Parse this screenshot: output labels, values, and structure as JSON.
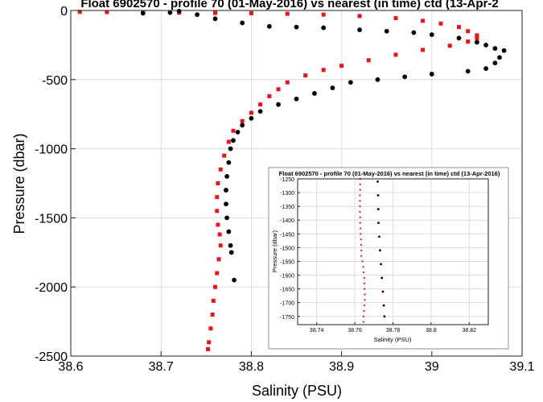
{
  "chart_data": [
    {
      "type": "scatter",
      "title": "Float 6902570 - profile 70 (01-May-2016) vs nearest (in time) ctd (13-Apr-2",
      "xlabel": "Salinity (PSU)",
      "ylabel": "Pressure (dbar)",
      "xlim": [
        38.6,
        39.1
      ],
      "ylim": [
        -2500,
        0
      ],
      "xticks": [
        "38.6",
        "38.7",
        "38.8",
        "38.9",
        "39",
        "39.1"
      ],
      "yticks": [
        "0",
        "-500",
        "-1000",
        "-1500",
        "-2000",
        "-2500"
      ],
      "grid": true,
      "series": [
        {
          "color": "#e8141b",
          "marker": "square",
          "points": [
            [
              38.61,
              -10
            ],
            [
              38.64,
              -12
            ],
            [
              38.68,
              -14
            ],
            [
              38.72,
              -16
            ],
            [
              38.76,
              -18
            ],
            [
              38.8,
              -20
            ],
            [
              38.84,
              -24
            ],
            [
              38.88,
              -30
            ],
            [
              38.92,
              -40
            ],
            [
              38.96,
              -55
            ],
            [
              38.99,
              -75
            ],
            [
              39.01,
              -95
            ],
            [
              39.03,
              -120
            ],
            [
              39.04,
              -150
            ],
            [
              39.05,
              -180
            ],
            [
              39.05,
              -200
            ],
            [
              39.04,
              -225
            ],
            [
              39.02,
              -255
            ],
            [
              38.99,
              -285
            ],
            [
              38.96,
              -320
            ],
            [
              38.93,
              -360
            ],
            [
              38.9,
              -400
            ],
            [
              38.88,
              -430
            ],
            [
              38.86,
              -470
            ],
            [
              38.84,
              -520
            ],
            [
              38.83,
              -570
            ],
            [
              38.82,
              -620
            ],
            [
              38.81,
              -680
            ],
            [
              38.8,
              -740
            ],
            [
              38.79,
              -800
            ],
            [
              38.78,
              -870
            ],
            [
              38.775,
              -950
            ],
            [
              38.77,
              -1050
            ],
            [
              38.766,
              -1150
            ],
            [
              38.763,
              -1250
            ],
            [
              38.762,
              -1350
            ],
            [
              38.762,
              -1450
            ],
            [
              38.763,
              -1550
            ],
            [
              38.765,
              -1620
            ],
            [
              38.766,
              -1700
            ],
            [
              38.764,
              -1800
            ],
            [
              38.762,
              -1900
            ],
            [
              38.76,
              -2000
            ],
            [
              38.758,
              -2100
            ],
            [
              38.757,
              -2200
            ],
            [
              38.755,
              -2300
            ],
            [
              38.753,
              -2400
            ],
            [
              38.752,
              -2450
            ]
          ]
        },
        {
          "color": "#000000",
          "marker": "circle",
          "points": [
            [
              38.68,
              -20
            ],
            [
              38.71,
              -15
            ],
            [
              38.72,
              -5
            ],
            [
              38.74,
              -30
            ],
            [
              38.76,
              -60
            ],
            [
              38.79,
              -90
            ],
            [
              38.82,
              -115
            ],
            [
              38.85,
              -120
            ],
            [
              38.88,
              -125
            ],
            [
              38.92,
              -140
            ],
            [
              38.95,
              -150
            ],
            [
              38.98,
              -160
            ],
            [
              39.0,
              -175
            ],
            [
              39.03,
              -200
            ],
            [
              39.05,
              -230
            ],
            [
              39.06,
              -250
            ],
            [
              39.07,
              -275
            ],
            [
              39.08,
              -290
            ],
            [
              39.075,
              -340
            ],
            [
              39.07,
              -380
            ],
            [
              39.06,
              -420
            ],
            [
              39.04,
              -440
            ],
            [
              39.0,
              -460
            ],
            [
              38.97,
              -480
            ],
            [
              38.94,
              -500
            ],
            [
              38.91,
              -520
            ],
            [
              38.89,
              -560
            ],
            [
              38.87,
              -600
            ],
            [
              38.85,
              -640
            ],
            [
              38.83,
              -680
            ],
            [
              38.81,
              -730
            ],
            [
              38.8,
              -780
            ],
            [
              38.79,
              -830
            ],
            [
              38.785,
              -880
            ],
            [
              38.78,
              -940
            ],
            [
              38.777,
              -1000
            ],
            [
              38.775,
              -1100
            ],
            [
              38.773,
              -1200
            ],
            [
              38.772,
              -1300
            ],
            [
              38.772,
              -1400
            ],
            [
              38.773,
              -1500
            ],
            [
              38.775,
              -1600
            ],
            [
              38.777,
              -1700
            ],
            [
              38.778,
              -1750
            ],
            [
              38.781,
              -1950
            ]
          ]
        }
      ]
    },
    {
      "type": "scatter",
      "title": "Float 6902570 - profile 70 (01-May-2016) vs nearest (in time) ctd (13-Apr-2016)",
      "xlabel": "Salinity (PSU)",
      "ylabel": "Pressure (dbar)",
      "xlim": [
        38.73,
        38.83
      ],
      "ylim": [
        -1780,
        -1250
      ],
      "xticks": [
        "38.74",
        "38.76",
        "38.78",
        "38.8",
        "38.82"
      ],
      "yticks": [
        "-1250",
        "-1300",
        "-1350",
        "-1400",
        "-1450",
        "-1500",
        "-1550",
        "-1600",
        "-1650",
        "-1700",
        "-1750"
      ],
      "grid": true,
      "series": [
        {
          "color": "#e8141b",
          "marker": "square",
          "points": [
            [
              38.7628,
              -1250
            ],
            [
              38.7628,
              -1270
            ],
            [
              38.7628,
              -1290
            ],
            [
              38.7627,
              -1310
            ],
            [
              38.7627,
              -1330
            ],
            [
              38.7627,
              -1350
            ],
            [
              38.7627,
              -1370
            ],
            [
              38.7628,
              -1390
            ],
            [
              38.7628,
              -1410
            ],
            [
              38.763,
              -1430
            ],
            [
              38.763,
              -1450
            ],
            [
              38.7632,
              -1470
            ],
            [
              38.7633,
              -1490
            ],
            [
              38.7634,
              -1510
            ],
            [
              38.7634,
              -1530
            ],
            [
              38.764,
              -1550
            ],
            [
              38.7644,
              -1570
            ],
            [
              38.7646,
              -1590
            ],
            [
              38.7649,
              -1610
            ],
            [
              38.765,
              -1630
            ],
            [
              38.7651,
              -1650
            ],
            [
              38.7652,
              -1670
            ],
            [
              38.7652,
              -1690
            ],
            [
              38.765,
              -1710
            ],
            [
              38.7648,
              -1730
            ],
            [
              38.7646,
              -1750
            ],
            [
              38.7645,
              -1770
            ]
          ]
        },
        {
          "color": "#000000",
          "marker": "circle",
          "points": [
            [
              38.772,
              -1260
            ],
            [
              38.7722,
              -1310
            ],
            [
              38.7723,
              -1360
            ],
            [
              38.7724,
              -1410
            ],
            [
              38.7728,
              -1460
            ],
            [
              38.7732,
              -1510
            ],
            [
              38.7737,
              -1560
            ],
            [
              38.7742,
              -1610
            ],
            [
              38.7747,
              -1660
            ],
            [
              38.7752,
              -1710
            ],
            [
              38.7755,
              -1750
            ]
          ]
        }
      ]
    }
  ]
}
